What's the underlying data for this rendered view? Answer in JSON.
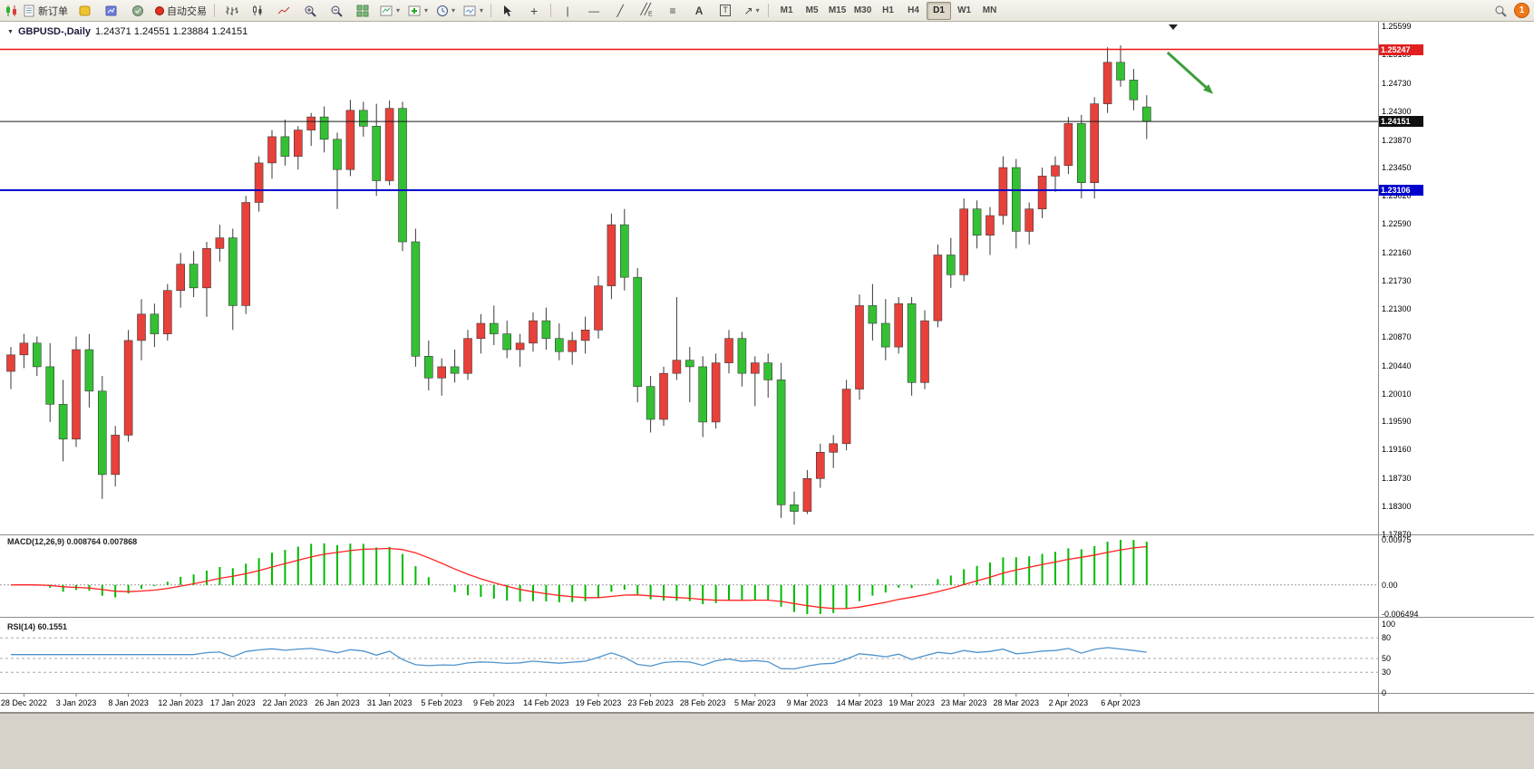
{
  "toolbar": {
    "new_order_label": "新订单",
    "autotrading_label": "自动交易",
    "timeframes": [
      "M1",
      "M5",
      "M15",
      "M30",
      "H1",
      "H4",
      "D1",
      "W1",
      "MN"
    ],
    "active_timeframe": "D1",
    "notification_count": "1"
  },
  "chart": {
    "title_symbol": "GBPUSD-,Daily",
    "title_ohlc": "1.24371 1.24551 1.23884 1.24151"
  },
  "indicators": {
    "macd_label": "MACD(12,26,9) 0.008764 0.007868",
    "rsi_label": "RSI(14) 60.1551"
  },
  "axis": {
    "price_ticks": [
      "1.25599",
      "1.25169",
      "1.24730",
      "1.24300",
      "1.23870",
      "1.23450",
      "1.23020",
      "1.22590",
      "1.22160",
      "1.21730",
      "1.21300",
      "1.20870",
      "1.20440",
      "1.20010",
      "1.19590",
      "1.19160",
      "1.18730",
      "1.18300",
      "1.17870"
    ],
    "macd_ticks": [
      "0.00975",
      "0.00",
      "-0.006494"
    ],
    "rsi_ticks": [
      "100",
      "80",
      "50",
      "30",
      "0"
    ],
    "dates": [
      "28 Dec 2022",
      "3 Jan 2023",
      "8 Jan 2023",
      "12 Jan 2023",
      "17 Jan 2023",
      "22 Jan 2023",
      "26 Jan 2023",
      "31 Jan 2023",
      "5 Feb 2023",
      "9 Feb 2023",
      "14 Feb 2023",
      "19 Feb 2023",
      "23 Feb 2023",
      "28 Feb 2023",
      "5 Mar 2023",
      "9 Mar 2023",
      "14 Mar 2023",
      "19 Mar 2023",
      "23 Mar 2023",
      "28 Mar 2023",
      "2 Apr 2023",
      "6 Apr 2023"
    ]
  },
  "price_markers": {
    "resistance": {
      "value": "1.25247",
      "color": "#e02020"
    },
    "current": {
      "value": "1.24151",
      "color": "#101010"
    },
    "support": {
      "value": "1.23106",
      "color": "#0000cc"
    }
  },
  "chart_data": {
    "type": "candlestick",
    "symbol": "GBPUSD",
    "timeframe": "Daily",
    "bull_color": "#e8403a",
    "bear_color": "#33c133",
    "price_range": [
      1.1787,
      1.25599
    ],
    "x_label_start": 1,
    "x_label_step": 4,
    "candles_ohlc": [
      [
        1.2035,
        1.2072,
        1.2008,
        1.206
      ],
      [
        1.206,
        1.2092,
        1.204,
        1.2078
      ],
      [
        1.2078,
        1.2088,
        1.2028,
        1.2042
      ],
      [
        1.2042,
        1.2078,
        1.1958,
        1.1985
      ],
      [
        1.1985,
        1.2022,
        1.1898,
        1.1932
      ],
      [
        1.1932,
        1.2088,
        1.192,
        1.2068
      ],
      [
        1.2068,
        1.2092,
        1.198,
        1.2005
      ],
      [
        1.2005,
        1.2028,
        1.1841,
        1.1878
      ],
      [
        1.1878,
        1.1952,
        1.186,
        1.1938
      ],
      [
        1.1938,
        1.2098,
        1.1928,
        1.2082
      ],
      [
        1.2082,
        1.2145,
        1.2052,
        1.2122
      ],
      [
        1.2122,
        1.2138,
        1.2072,
        1.2092
      ],
      [
        1.2092,
        1.2168,
        1.2082,
        1.2158
      ],
      [
        1.2158,
        1.2215,
        1.2132,
        1.2198
      ],
      [
        1.2198,
        1.2218,
        1.2148,
        1.2162
      ],
      [
        1.2162,
        1.2232,
        1.2118,
        1.2222
      ],
      [
        1.2222,
        1.2258,
        1.2202,
        1.2238
      ],
      [
        1.2238,
        1.2252,
        1.2098,
        1.2135
      ],
      [
        1.2135,
        1.2302,
        1.2122,
        1.2292
      ],
      [
        1.2292,
        1.2362,
        1.2278,
        1.2352
      ],
      [
        1.2352,
        1.2402,
        1.2328,
        1.2392
      ],
      [
        1.2392,
        1.2418,
        1.2348,
        1.2362
      ],
      [
        1.2362,
        1.2408,
        1.2342,
        1.2402
      ],
      [
        1.2402,
        1.2428,
        1.2378,
        1.2422
      ],
      [
        1.2422,
        1.2438,
        1.2368,
        1.2388
      ],
      [
        1.2388,
        1.2398,
        1.2282,
        1.2342
      ],
      [
        1.2342,
        1.2448,
        1.2332,
        1.2432
      ],
      [
        1.2432,
        1.2445,
        1.2392,
        1.2408
      ],
      [
        1.2408,
        1.2442,
        1.2302,
        1.2325
      ],
      [
        1.2325,
        1.2447,
        1.2318,
        1.2435
      ],
      [
        1.2435,
        1.2445,
        1.2218,
        1.2232
      ],
      [
        1.2232,
        1.2252,
        1.2042,
        1.2058
      ],
      [
        1.2058,
        1.2082,
        1.2006,
        1.2025
      ],
      [
        1.2025,
        1.2055,
        1.1998,
        1.2042
      ],
      [
        1.2042,
        1.2068,
        1.2018,
        1.2032
      ],
      [
        1.2032,
        1.2098,
        1.2022,
        1.2085
      ],
      [
        1.2085,
        1.2122,
        1.2062,
        1.2108
      ],
      [
        1.2108,
        1.2135,
        1.2075,
        1.2092
      ],
      [
        1.2092,
        1.2112,
        1.2055,
        1.2068
      ],
      [
        1.2068,
        1.2092,
        1.2042,
        1.2078
      ],
      [
        1.2078,
        1.2125,
        1.2065,
        1.2112
      ],
      [
        1.2112,
        1.2132,
        1.2068,
        1.2085
      ],
      [
        1.2085,
        1.2108,
        1.2052,
        1.2065
      ],
      [
        1.2065,
        1.2095,
        1.2045,
        1.2082
      ],
      [
        1.2082,
        1.2118,
        1.2062,
        1.2098
      ],
      [
        1.2098,
        1.218,
        1.2085,
        1.2165
      ],
      [
        1.2165,
        1.2275,
        1.2145,
        1.2258
      ],
      [
        1.2258,
        1.2282,
        1.2158,
        1.2178
      ],
      [
        1.2178,
        1.2192,
        1.1988,
        1.2012
      ],
      [
        1.2012,
        1.2028,
        1.1942,
        1.1962
      ],
      [
        1.1962,
        1.2042,
        1.1952,
        1.2032
      ],
      [
        1.2032,
        1.2148,
        1.2022,
        1.2052
      ],
      [
        1.2052,
        1.2072,
        1.1988,
        1.2042
      ],
      [
        1.2042,
        1.2058,
        1.1935,
        1.1958
      ],
      [
        1.1958,
        1.2062,
        1.1948,
        1.2048
      ],
      [
        1.2048,
        1.2098,
        1.2032,
        1.2085
      ],
      [
        1.2085,
        1.2095,
        1.2012,
        1.2032
      ],
      [
        1.2032,
        1.2058,
        1.1982,
        1.2048
      ],
      [
        1.2048,
        1.2062,
        1.1995,
        1.2022
      ],
      [
        1.2022,
        1.2048,
        1.1812,
        1.1832
      ],
      [
        1.1832,
        1.1852,
        1.1802,
        1.1822
      ],
      [
        1.1822,
        1.1885,
        1.1818,
        1.1872
      ],
      [
        1.1872,
        1.1925,
        1.1858,
        1.1912
      ],
      [
        1.1912,
        1.1938,
        1.1888,
        1.1925
      ],
      [
        1.1925,
        1.2022,
        1.1915,
        1.2008
      ],
      [
        1.2008,
        1.2152,
        1.1992,
        1.2135
      ],
      [
        1.2135,
        1.2168,
        1.2082,
        1.2108
      ],
      [
        1.2108,
        1.2145,
        1.2052,
        1.2072
      ],
      [
        1.2072,
        1.2148,
        1.2062,
        1.2138
      ],
      [
        1.2138,
        1.2148,
        1.1998,
        1.2018
      ],
      [
        1.2018,
        1.2128,
        1.2008,
        1.2112
      ],
      [
        1.2112,
        1.2228,
        1.2102,
        1.2212
      ],
      [
        1.2212,
        1.2238,
        1.2162,
        1.2182
      ],
      [
        1.2182,
        1.2298,
        1.2172,
        1.2282
      ],
      [
        1.2282,
        1.2295,
        1.2222,
        1.2242
      ],
      [
        1.2242,
        1.2285,
        1.2212,
        1.2272
      ],
      [
        1.2272,
        1.2362,
        1.2258,
        1.2345
      ],
      [
        1.2345,
        1.2358,
        1.2222,
        1.2248
      ],
      [
        1.2248,
        1.2292,
        1.2228,
        1.2282
      ],
      [
        1.2282,
        1.2345,
        1.2268,
        1.2332
      ],
      [
        1.2332,
        1.2362,
        1.2308,
        1.2348
      ],
      [
        1.2348,
        1.2422,
        1.2335,
        1.2412
      ],
      [
        1.2412,
        1.2425,
        1.2298,
        1.2322
      ],
      [
        1.2322,
        1.2452,
        1.2298,
        1.2442
      ],
      [
        1.2442,
        1.2528,
        1.2428,
        1.2505
      ],
      [
        1.2505,
        1.2531,
        1.2468,
        1.2478
      ],
      [
        1.2478,
        1.2495,
        1.2432,
        1.2448
      ],
      [
        1.24371,
        1.24551,
        1.23884,
        1.24151
      ]
    ],
    "hlines": [
      {
        "name": "resistance-line",
        "price": 1.25247,
        "color": "#ee1111",
        "width": 1.5
      },
      {
        "name": "current-price-line",
        "price": 1.24151,
        "color": "#1a1a1a",
        "width": 1
      },
      {
        "name": "support-line",
        "price": 1.23106,
        "color": "#0000cc",
        "width": 2
      }
    ],
    "annotation_arrow": {
      "from_bar": 88.6,
      "from_price": 1.252,
      "to_bar": 92.1,
      "to_price": 1.2457,
      "color": "#3d9e3d"
    },
    "macd": {
      "params": "12,26,9",
      "value": 0.008764,
      "signal_value": 0.007868,
      "hist_color": "#00bb00",
      "signal_color": "#ff2222"
    },
    "rsi": {
      "period": 14,
      "value": 60.1551,
      "levels": [
        30,
        50,
        80
      ],
      "line_color": "#4f93cc"
    }
  }
}
